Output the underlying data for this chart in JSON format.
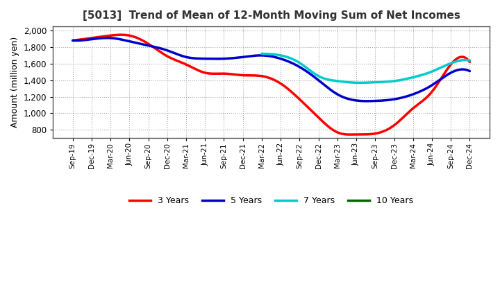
{
  "title": "[5013]  Trend of Mean of 12-Month Moving Sum of Net Incomes",
  "ylabel": "Amount (million yen)",
  "background_color": "#ffffff",
  "plot_bg_color": "#ffffff",
  "grid_color": "#aaaaaa",
  "x_labels": [
    "Sep-19",
    "Dec-19",
    "Mar-20",
    "Jun-20",
    "Sep-20",
    "Dec-20",
    "Mar-21",
    "Jun-21",
    "Sep-21",
    "Dec-21",
    "Mar-22",
    "Jun-22",
    "Sep-22",
    "Dec-22",
    "Mar-23",
    "Jun-23",
    "Sep-23",
    "Dec-23",
    "Mar-24",
    "Jun-24",
    "Sep-24",
    "Dec-24"
  ],
  "ylim": [
    700,
    2050
  ],
  "yticks": [
    800,
    1000,
    1200,
    1400,
    1600,
    1800,
    2000
  ],
  "series": {
    "3 Years": {
      "color": "#ff0000",
      "values": [
        1880,
        1910,
        1940,
        1940,
        1840,
        1690,
        1590,
        1490,
        1480,
        1460,
        1450,
        1360,
        1170,
        950,
        770,
        745,
        755,
        855,
        1060,
        1260,
        1590,
        1620
      ]
    },
    "5 Years": {
      "color": "#0000cc",
      "values": [
        1880,
        1895,
        1910,
        1870,
        1820,
        1760,
        1680,
        1660,
        1660,
        1680,
        1700,
        1660,
        1560,
        1400,
        1230,
        1155,
        1150,
        1170,
        1230,
        1340,
        1490,
        1510
      ]
    },
    "7 Years": {
      "color": "#00cccc",
      "values": [
        null,
        null,
        null,
        null,
        null,
        null,
        null,
        null,
        null,
        null,
        1720,
        1700,
        1610,
        1450,
        1390,
        1370,
        1375,
        1390,
        1435,
        1505,
        1605,
        1640
      ]
    },
    "10 Years": {
      "color": "#006600",
      "values": [
        null,
        null,
        null,
        null,
        null,
        null,
        null,
        null,
        null,
        null,
        null,
        null,
        null,
        null,
        null,
        null,
        null,
        null,
        null,
        null,
        null,
        null
      ]
    }
  },
  "legend_labels": [
    "3 Years",
    "5 Years",
    "7 Years",
    "10 Years"
  ],
  "legend_colors": [
    "#ff0000",
    "#0000cc",
    "#00cccc",
    "#006600"
  ]
}
